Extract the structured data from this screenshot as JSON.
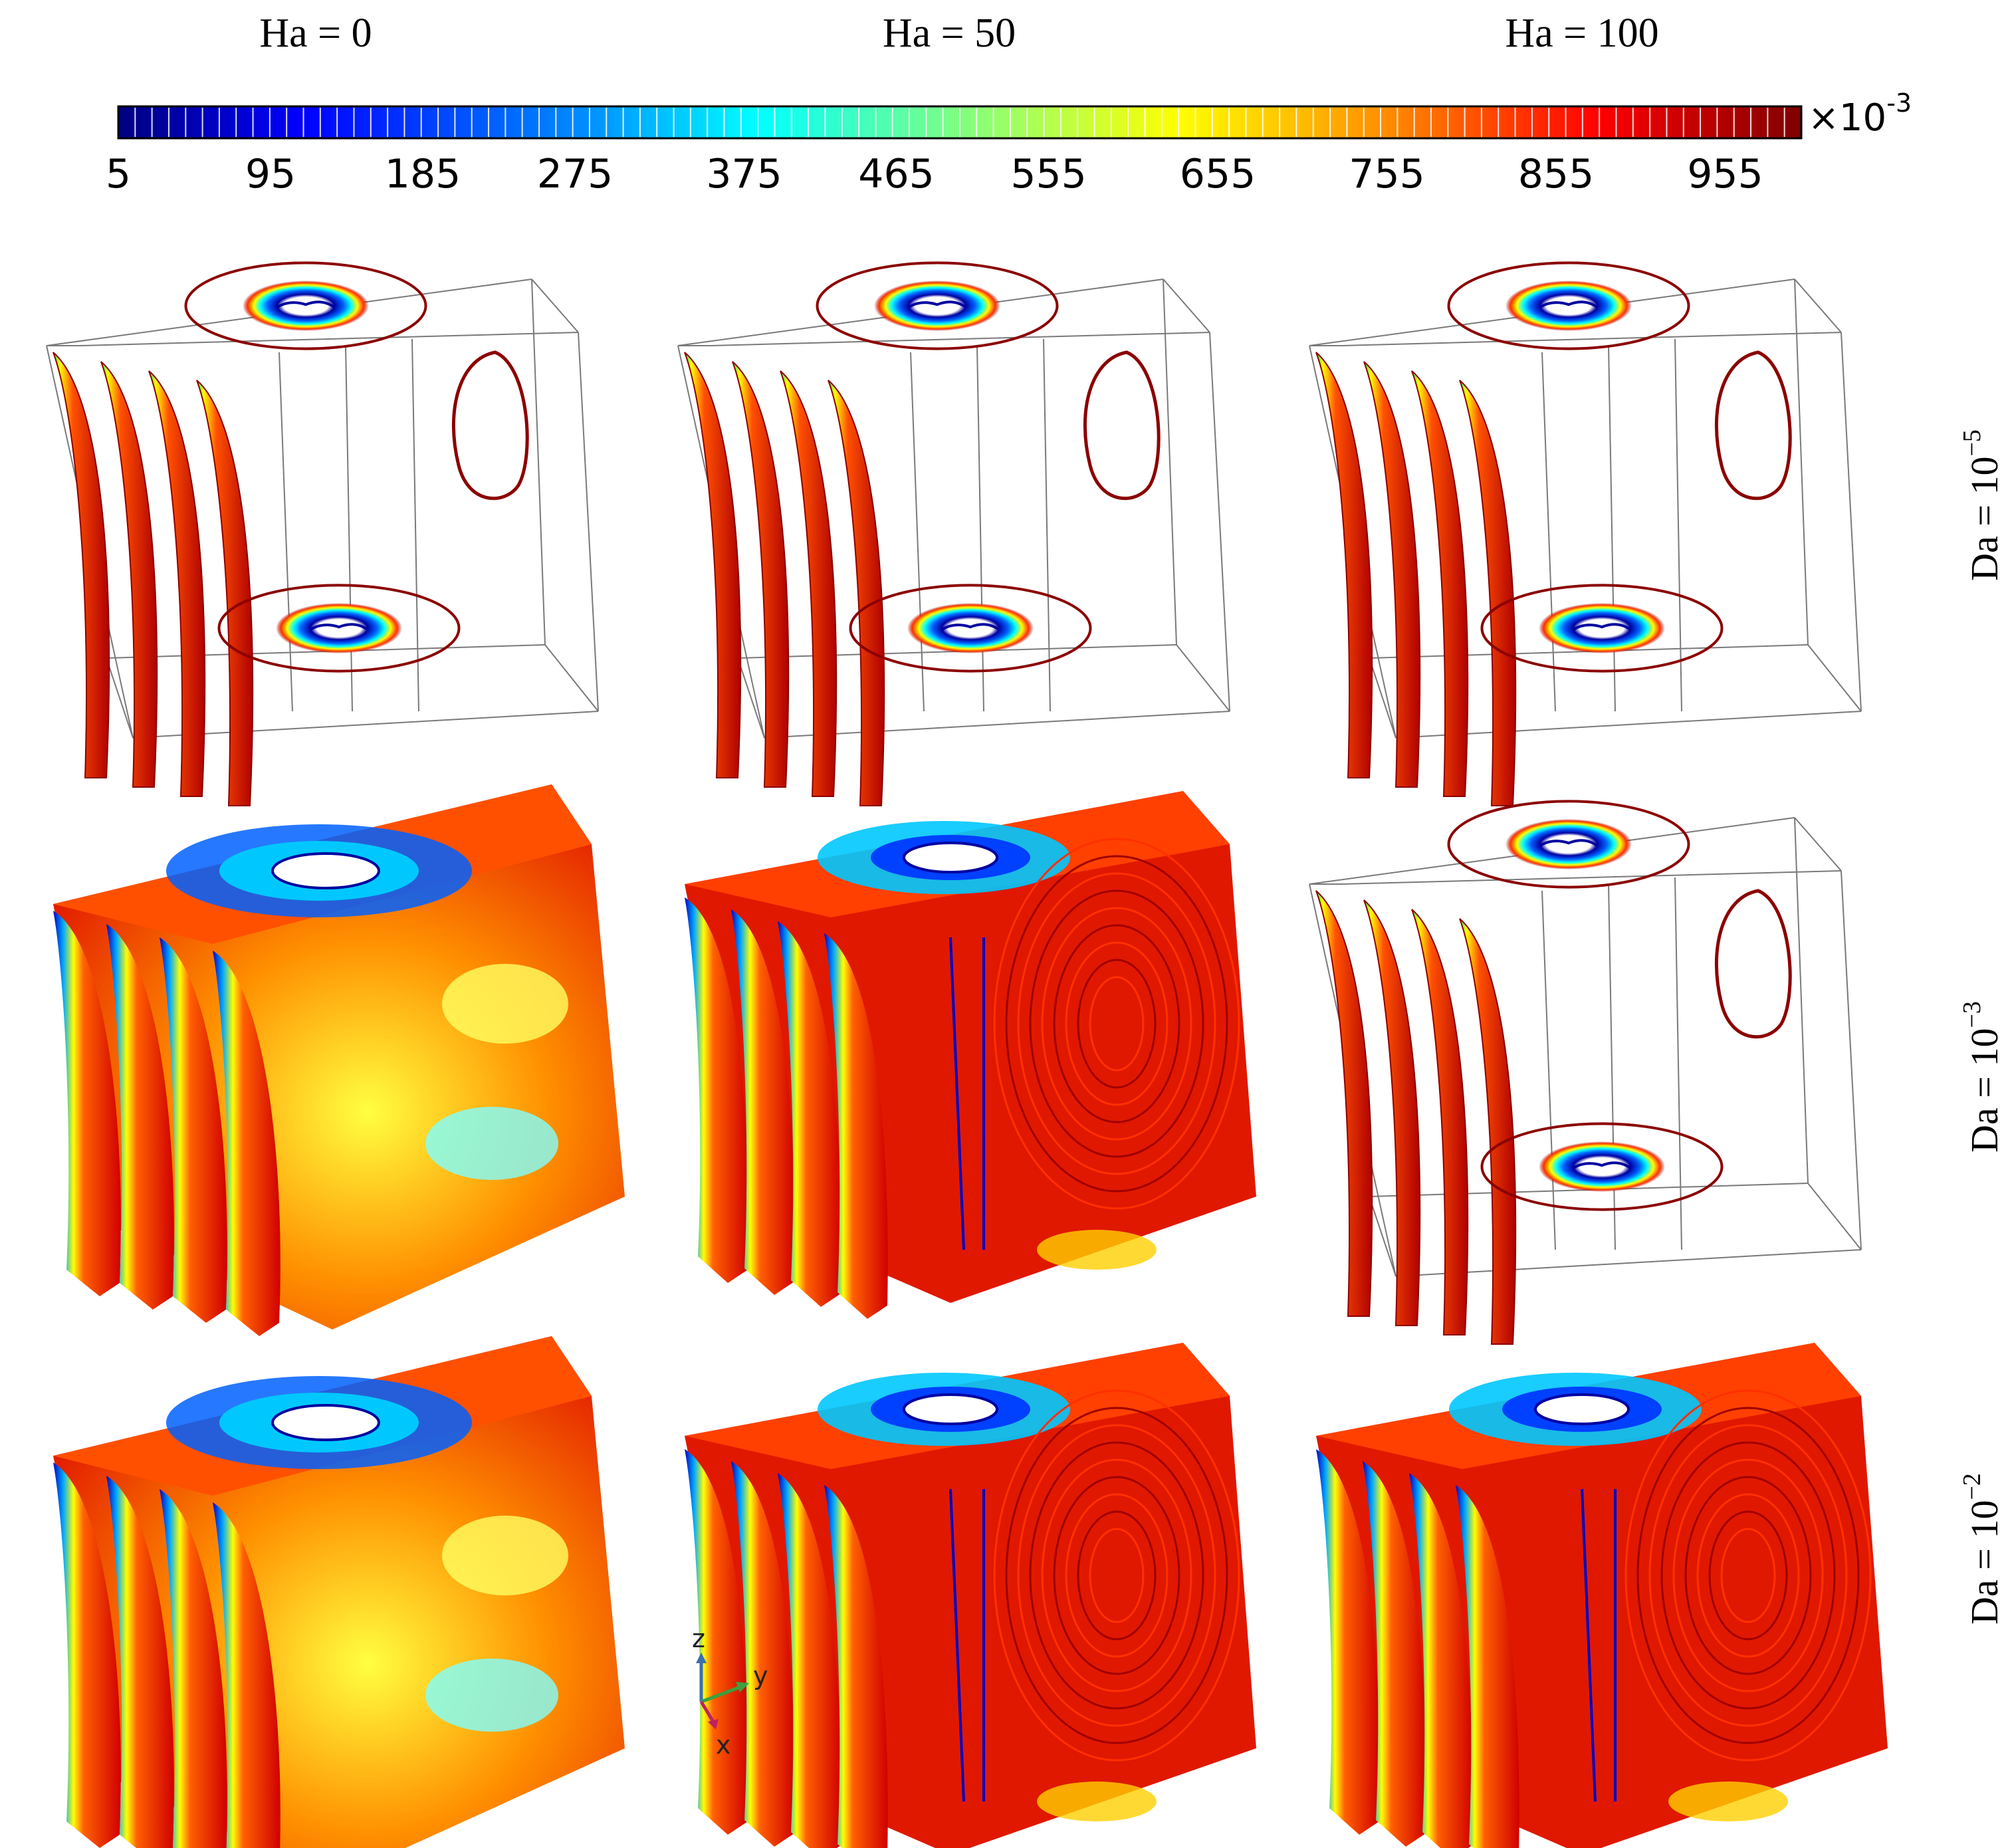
{
  "columns": [
    {
      "label": "Ha = 0"
    },
    {
      "label": "Ha = 50"
    },
    {
      "label": "Ha = 100"
    }
  ],
  "rows": [
    {
      "base": "Da = 10",
      "exp": "−5"
    },
    {
      "base": "Da = 10",
      "exp": "−3"
    },
    {
      "base": "Da = 10",
      "exp": "−2"
    }
  ],
  "colorbar": {
    "ticks": [
      "5",
      "95",
      "185",
      "275",
      "375",
      "465",
      "555",
      "655",
      "755",
      "855",
      "955"
    ],
    "multiplier_base": "×10",
    "multiplier_exp": "-3",
    "colors": [
      "#00007f",
      "#0000ff",
      "#0080ff",
      "#00ffff",
      "#80ff80",
      "#ffff00",
      "#ff8000",
      "#ff0000",
      "#7f0000"
    ]
  },
  "panels": [
    {
      "row": 0,
      "col": 0,
      "style": "outline"
    },
    {
      "row": 0,
      "col": 1,
      "style": "outline"
    },
    {
      "row": 0,
      "col": 2,
      "style": "outline"
    },
    {
      "row": 1,
      "col": 0,
      "style": "filled"
    },
    {
      "row": 1,
      "col": 1,
      "style": "swirl"
    },
    {
      "row": 1,
      "col": 2,
      "style": "outline"
    },
    {
      "row": 2,
      "col": 0,
      "style": "filled"
    },
    {
      "row": 2,
      "col": 1,
      "style": "swirl"
    },
    {
      "row": 2,
      "col": 2,
      "style": "swirl"
    }
  ],
  "axes_triad": {
    "z": "z",
    "y": "y",
    "x": "x"
  }
}
